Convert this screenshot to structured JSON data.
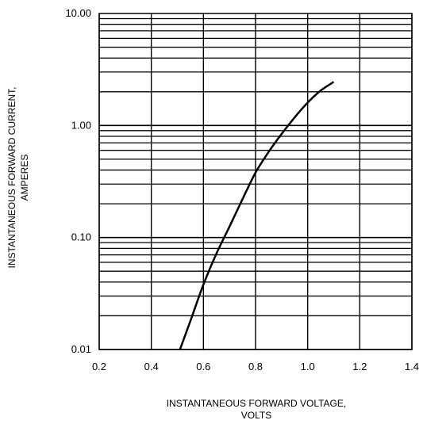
{
  "chart_data": {
    "type": "line",
    "title": "",
    "xlabel_lines": [
      "INSTANTANEOUS FORWARD VOLTAGE,",
      "VOLTS"
    ],
    "ylabel_lines": [
      "INSTANTANEOUS FORWARD CURRENT,",
      "AMPERES"
    ],
    "xlim": [
      0.2,
      1.4
    ],
    "ylim": [
      0.01,
      10
    ],
    "y_scale": "log",
    "x_ticks": [
      0.2,
      0.4,
      0.6,
      0.8,
      1.0,
      1.2,
      1.4
    ],
    "x_tick_labels": [
      "0.2",
      "0.4",
      "0.6",
      "0.8",
      "1.0",
      "1.2",
      "1.4"
    ],
    "y_ticks": [
      0.01,
      0.1,
      1,
      10
    ],
    "y_tick_labels": [
      "0.01",
      "0.10",
      "1.00",
      "10.00"
    ],
    "grid": true,
    "series": [
      {
        "x": [
          0.51,
          0.55,
          0.6,
          0.65,
          0.7,
          0.75,
          0.8,
          0.85,
          0.9,
          0.95,
          1.0,
          1.05,
          1.1
        ],
        "y": [
          0.01,
          0.018,
          0.038,
          0.072,
          0.125,
          0.22,
          0.38,
          0.58,
          0.84,
          1.18,
          1.6,
          2.05,
          2.45
        ]
      }
    ],
    "colors": {
      "line": "#000000",
      "grid": "#000000",
      "background": "#ffffff"
    }
  }
}
